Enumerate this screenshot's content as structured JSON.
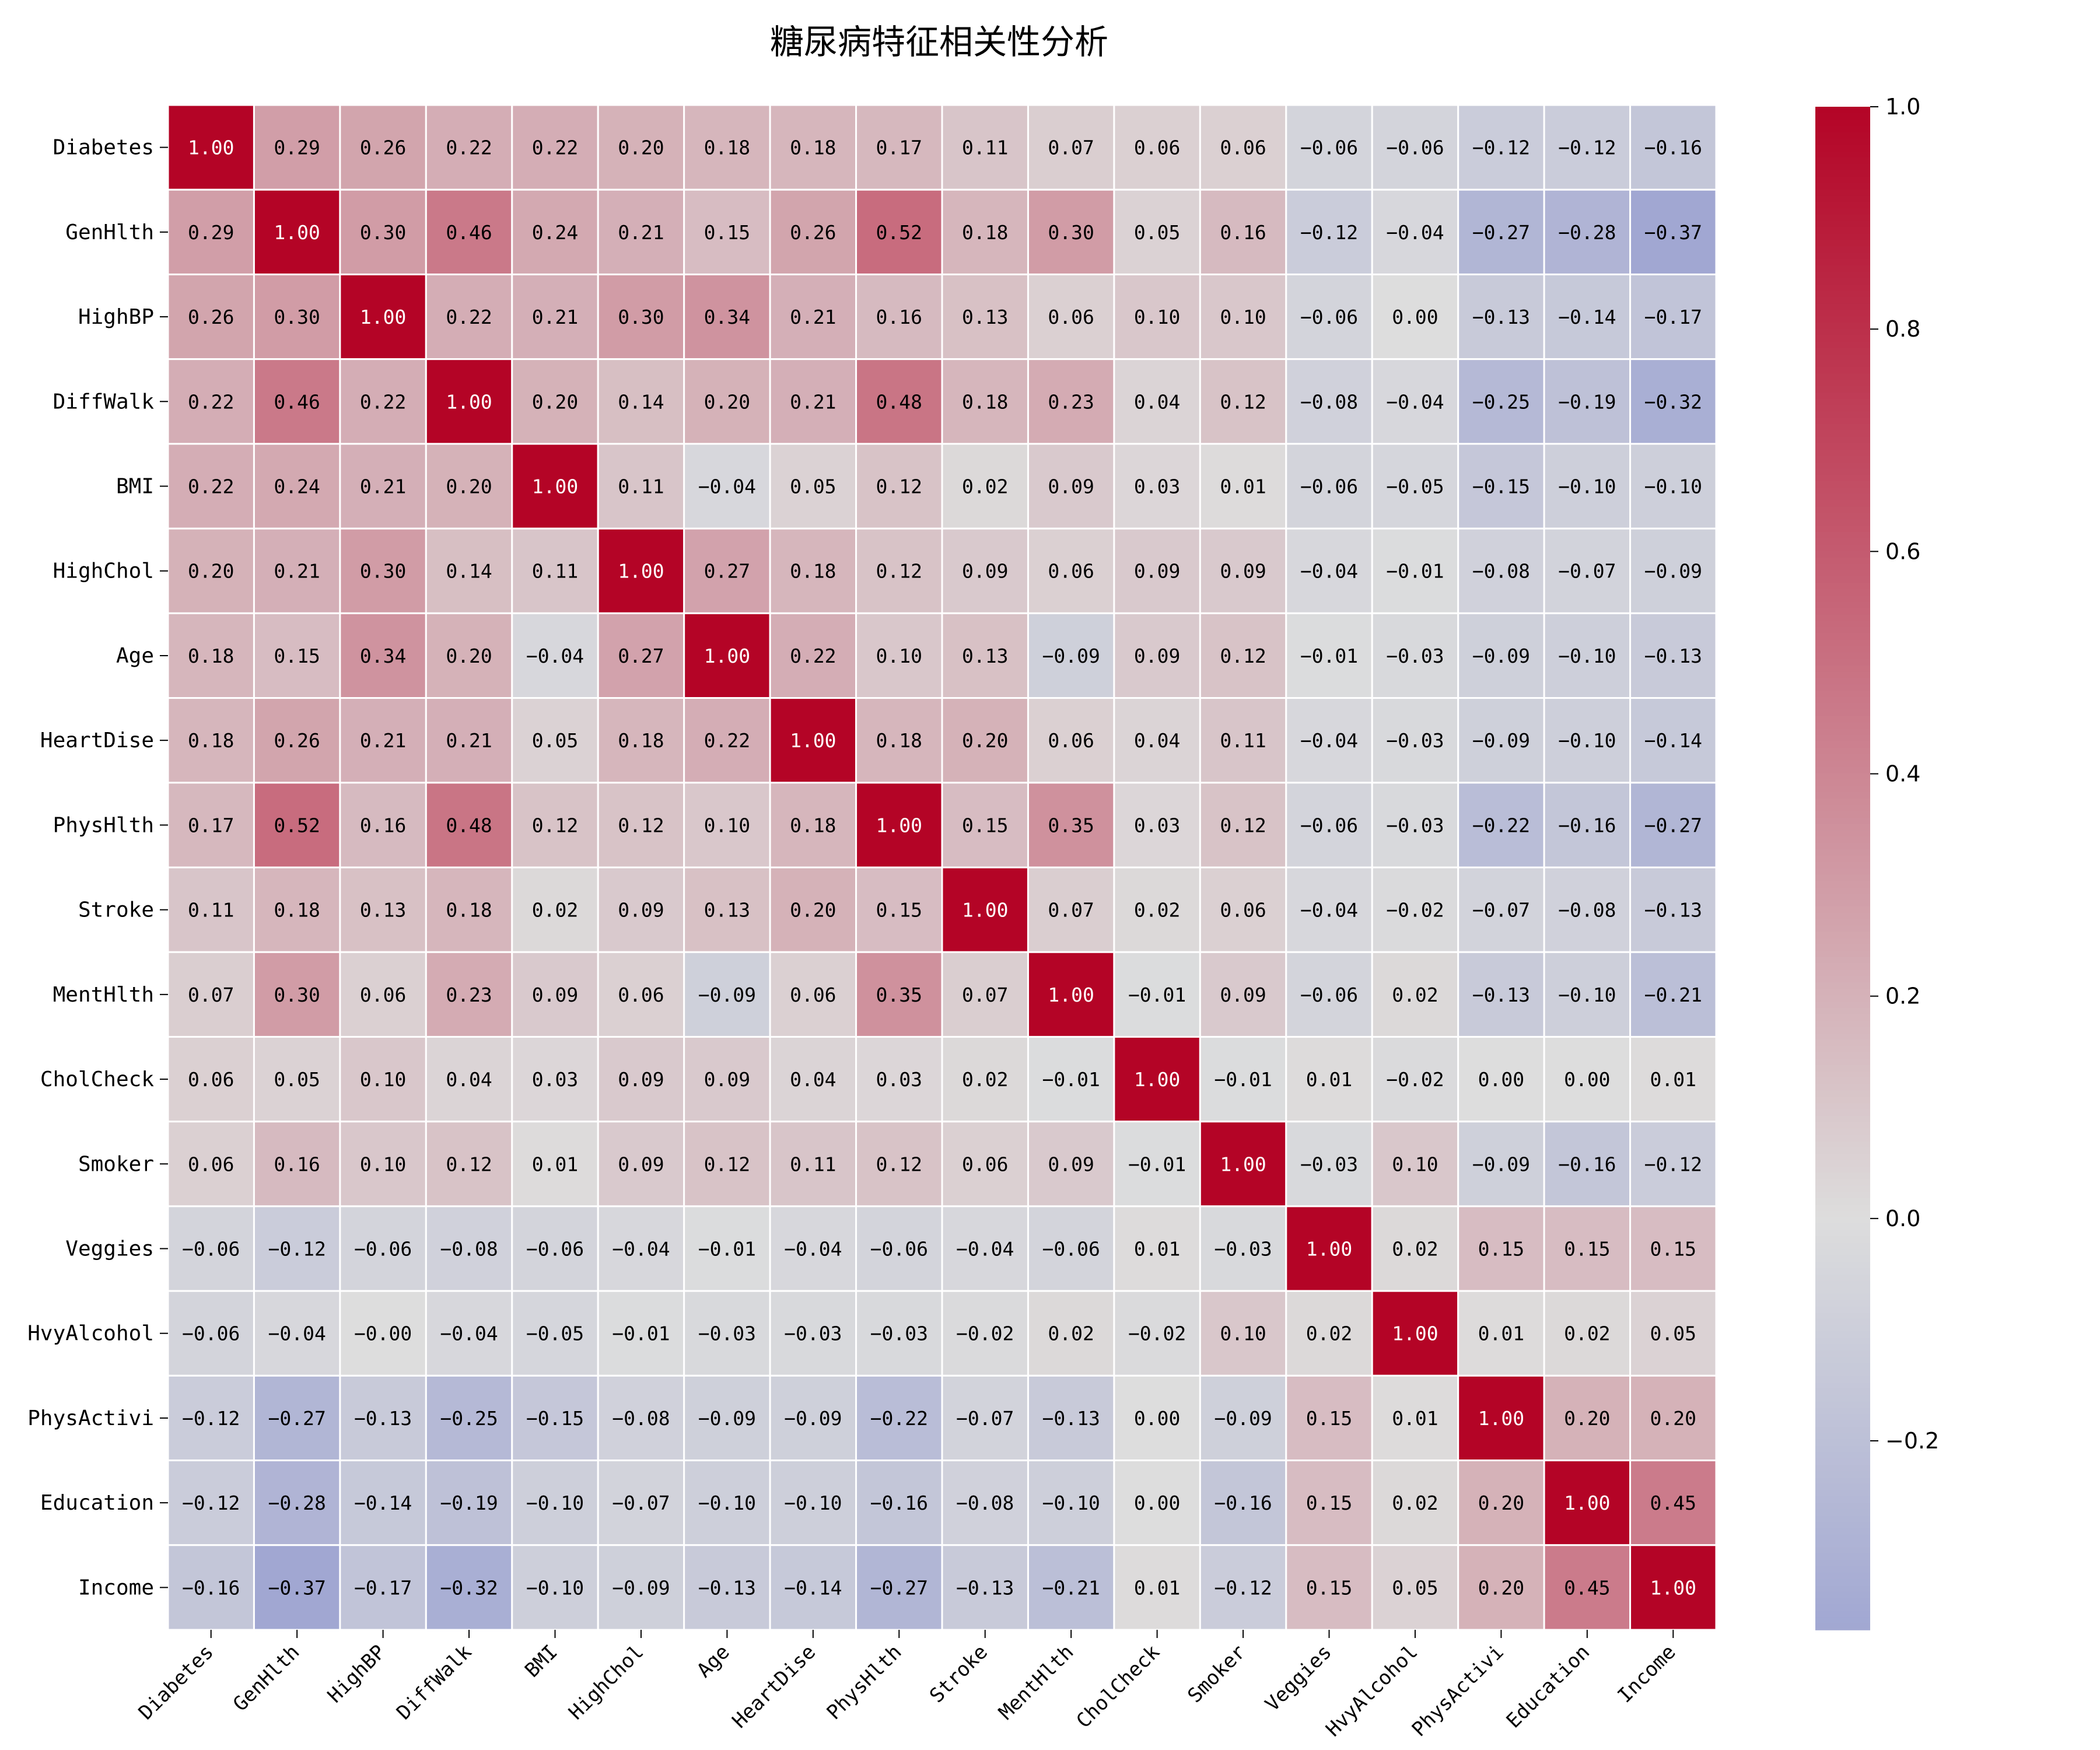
{
  "chart_data": {
    "type": "heatmap",
    "title": "糖尿病特征相关性分析",
    "labels": [
      "Diabetes",
      "GenHlth",
      "HighBP",
      "DiffWalk",
      "BMI",
      "HighChol",
      "Age",
      "HeartDise",
      "PhysHlth",
      "Stroke",
      "MentHlth",
      "CholCheck",
      "Smoker",
      "Veggies",
      "HvyAlcohol",
      "PhysActivi",
      "Education",
      "Income"
    ],
    "matrix": [
      [
        1.0,
        0.29,
        0.26,
        0.22,
        0.22,
        0.2,
        0.18,
        0.18,
        0.17,
        0.11,
        0.07,
        0.06,
        0.06,
        -0.06,
        -0.06,
        -0.12,
        -0.12,
        -0.16
      ],
      [
        0.29,
        1.0,
        0.3,
        0.46,
        0.24,
        0.21,
        0.15,
        0.26,
        0.52,
        0.18,
        0.3,
        0.05,
        0.16,
        -0.12,
        -0.04,
        -0.27,
        -0.28,
        -0.37
      ],
      [
        0.26,
        0.3,
        1.0,
        0.22,
        0.21,
        0.3,
        0.34,
        0.21,
        0.16,
        0.13,
        0.06,
        0.1,
        0.1,
        -0.06,
        -0.0,
        -0.13,
        -0.14,
        -0.17
      ],
      [
        0.22,
        0.46,
        0.22,
        1.0,
        0.2,
        0.14,
        0.2,
        0.21,
        0.48,
        0.18,
        0.23,
        0.04,
        0.12,
        -0.08,
        -0.04,
        -0.25,
        -0.19,
        -0.32
      ],
      [
        0.22,
        0.24,
        0.21,
        0.2,
        1.0,
        0.11,
        -0.04,
        0.05,
        0.12,
        0.02,
        0.09,
        0.03,
        0.01,
        -0.06,
        -0.05,
        -0.15,
        -0.1,
        -0.1
      ],
      [
        0.2,
        0.21,
        0.3,
        0.14,
        0.11,
        1.0,
        0.27,
        0.18,
        0.12,
        0.09,
        0.06,
        0.09,
        0.09,
        -0.04,
        -0.01,
        -0.08,
        -0.07,
        -0.09
      ],
      [
        0.18,
        0.15,
        0.34,
        0.2,
        -0.04,
        0.27,
        1.0,
        0.22,
        0.1,
        0.13,
        -0.09,
        0.09,
        0.12,
        -0.01,
        -0.03,
        -0.09,
        -0.1,
        -0.13
      ],
      [
        0.18,
        0.26,
        0.21,
        0.21,
        0.05,
        0.18,
        0.22,
        1.0,
        0.18,
        0.2,
        0.06,
        0.04,
        0.11,
        -0.04,
        -0.03,
        -0.09,
        -0.1,
        -0.14
      ],
      [
        0.17,
        0.52,
        0.16,
        0.48,
        0.12,
        0.12,
        0.1,
        0.18,
        1.0,
        0.15,
        0.35,
        0.03,
        0.12,
        -0.06,
        -0.03,
        -0.22,
        -0.16,
        -0.27
      ],
      [
        0.11,
        0.18,
        0.13,
        0.18,
        0.02,
        0.09,
        0.13,
        0.2,
        0.15,
        1.0,
        0.07,
        0.02,
        0.06,
        -0.04,
        -0.02,
        -0.07,
        -0.08,
        -0.13
      ],
      [
        0.07,
        0.3,
        0.06,
        0.23,
        0.09,
        0.06,
        -0.09,
        0.06,
        0.35,
        0.07,
        1.0,
        -0.01,
        0.09,
        -0.06,
        0.02,
        -0.13,
        -0.1,
        -0.21
      ],
      [
        0.06,
        0.05,
        0.1,
        0.04,
        0.03,
        0.09,
        0.09,
        0.04,
        0.03,
        0.02,
        -0.01,
        1.0,
        -0.01,
        0.01,
        -0.02,
        0.0,
        0.0,
        0.01
      ],
      [
        0.06,
        0.16,
        0.1,
        0.12,
        0.01,
        0.09,
        0.12,
        0.11,
        0.12,
        0.06,
        0.09,
        -0.01,
        1.0,
        -0.03,
        0.1,
        -0.09,
        -0.16,
        -0.12
      ],
      [
        -0.06,
        -0.12,
        -0.06,
        -0.08,
        -0.06,
        -0.04,
        -0.01,
        -0.04,
        -0.06,
        -0.04,
        -0.06,
        0.01,
        -0.03,
        1.0,
        0.02,
        0.15,
        0.15,
        0.15
      ],
      [
        -0.06,
        -0.04,
        -0.0,
        -0.04,
        -0.05,
        -0.01,
        -0.03,
        -0.03,
        -0.03,
        -0.02,
        0.02,
        -0.02,
        0.1,
        0.02,
        1.0,
        0.01,
        0.02,
        0.05
      ],
      [
        -0.12,
        -0.27,
        -0.13,
        -0.25,
        -0.15,
        -0.08,
        -0.09,
        -0.09,
        -0.22,
        -0.07,
        -0.13,
        0.0,
        -0.09,
        0.15,
        0.01,
        1.0,
        0.2,
        0.2
      ],
      [
        -0.12,
        -0.28,
        -0.14,
        -0.19,
        -0.1,
        -0.07,
        -0.1,
        -0.1,
        -0.16,
        -0.08,
        -0.1,
        0.0,
        -0.16,
        0.15,
        0.02,
        0.2,
        1.0,
        0.45
      ],
      [
        -0.16,
        -0.37,
        -0.17,
        -0.32,
        -0.1,
        -0.09,
        -0.13,
        -0.14,
        -0.27,
        -0.13,
        -0.21,
        0.01,
        -0.12,
        0.15,
        0.05,
        0.2,
        0.45,
        1.0
      ]
    ],
    "colorbar": {
      "min": -0.37,
      "center": 0.0,
      "max": 1.0,
      "ticks": [
        1.0,
        0.8,
        0.6,
        0.4,
        0.2,
        0.0,
        -0.2
      ],
      "tick_labels": [
        "1.0",
        "0.8",
        "0.6",
        "0.4",
        "0.2",
        "0.0",
        "−0.2"
      ],
      "colormap": "coolwarm",
      "color_low": "#3b4cc0",
      "color_mid": "#dddddd",
      "color_high": "#b40426"
    },
    "grid_line_color": "#ffffff",
    "value_format": "2 decimals"
  }
}
